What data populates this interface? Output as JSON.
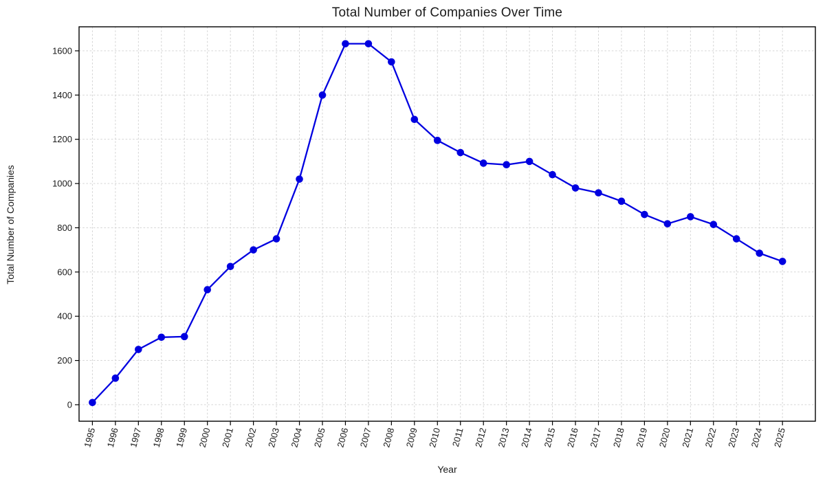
{
  "chart_data": {
    "type": "line",
    "title": "Total Number of Companies Over Time",
    "xlabel": "Year",
    "ylabel": "Total Number of Companies",
    "x": [
      1995,
      1996,
      1997,
      1998,
      1999,
      2000,
      2001,
      2002,
      2003,
      2004,
      2005,
      2006,
      2007,
      2008,
      2009,
      2010,
      2011,
      2012,
      2013,
      2014,
      2015,
      2016,
      2017,
      2018,
      2019,
      2020,
      2021,
      2022,
      2023,
      2024,
      2025
    ],
    "values": [
      10,
      120,
      250,
      305,
      308,
      520,
      625,
      700,
      750,
      1020,
      1400,
      1632,
      1632,
      1550,
      1290,
      1195,
      1140,
      1092,
      1085,
      1100,
      1040,
      980,
      958,
      920,
      860,
      818,
      850,
      815,
      750,
      685,
      648
    ],
    "series_name": "Total Number of Companies",
    "yticks": [
      0,
      200,
      400,
      600,
      800,
      1000,
      1200,
      1400,
      1600
    ],
    "ylim": [
      -74.6,
      1708.6
    ],
    "xlim": [
      1994.42,
      2026.43
    ],
    "grid": true,
    "legend": false,
    "marker": "circle",
    "line_color": "#0000e0",
    "grid_color": "#cfcfcf",
    "spine_color": "#000000",
    "tick_label_rotation_deg": 75
  }
}
